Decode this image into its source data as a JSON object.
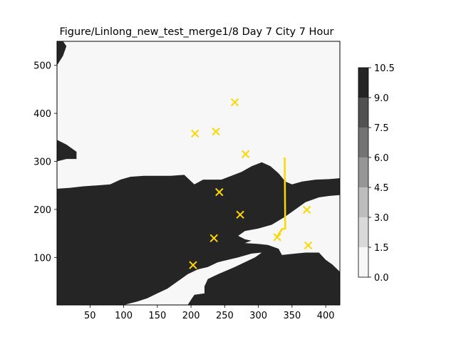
{
  "chart_data": {
    "type": "heatmap",
    "title": "Figure/Linlong_new_test_merge1/8 Day 7 City 7 Hour",
    "xlabel": "",
    "ylabel": "",
    "xlim": [
      1,
      421
    ],
    "ylim": [
      1,
      550
    ],
    "x_ticks": [
      50,
      100,
      150,
      200,
      250,
      300,
      350,
      400
    ],
    "y_ticks": [
      100,
      200,
      300,
      400,
      500
    ],
    "grid": false,
    "colormap": "gray_r",
    "colorbar": {
      "levels": [
        0.0,
        1.5,
        3.0,
        4.5,
        6.0,
        7.5,
        9.0,
        10.5
      ],
      "tick_labels": [
        "0.0",
        "1.5",
        "3.0",
        "4.5",
        "6.0",
        "7.5",
        "9.0",
        "10.5"
      ],
      "colors": [
        "#f7f7f7",
        "#d9d9d9",
        "#bdbdbd",
        "#969696",
        "#737373",
        "#525252",
        "#252525"
      ]
    },
    "marker_color": "#ffd700",
    "cities": [
      {
        "x": 265,
        "y": 423
      },
      {
        "x": 206,
        "y": 358
      },
      {
        "x": 237,
        "y": 362
      },
      {
        "x": 281,
        "y": 315
      },
      {
        "x": 242,
        "y": 236
      },
      {
        "x": 273,
        "y": 189
      },
      {
        "x": 372,
        "y": 199
      },
      {
        "x": 234,
        "y": 140
      },
      {
        "x": 203,
        "y": 84
      },
      {
        "x": 374,
        "y": 125
      },
      {
        "x": 328,
        "y": 142
      }
    ],
    "route": [
      {
        "x": 339,
        "y": 308
      },
      {
        "x": 340,
        "y": 160
      },
      {
        "x": 335,
        "y": 159
      },
      {
        "x": 331,
        "y": 150
      },
      {
        "x": 328,
        "y": 143
      }
    ],
    "light_region": [
      {
        "x": 1,
        "y": 550
      },
      {
        "x": 421,
        "y": 550
      },
      {
        "x": 421,
        "y": 265
      },
      {
        "x": 405,
        "y": 263
      },
      {
        "x": 385,
        "y": 262
      },
      {
        "x": 365,
        "y": 258
      },
      {
        "x": 350,
        "y": 252
      },
      {
        "x": 340,
        "y": 258
      },
      {
        "x": 330,
        "y": 275
      },
      {
        "x": 318,
        "y": 290
      },
      {
        "x": 305,
        "y": 298
      },
      {
        "x": 290,
        "y": 290
      },
      {
        "x": 275,
        "y": 278
      },
      {
        "x": 260,
        "y": 270
      },
      {
        "x": 245,
        "y": 262
      },
      {
        "x": 232,
        "y": 262
      },
      {
        "x": 218,
        "y": 262
      },
      {
        "x": 205,
        "y": 252
      },
      {
        "x": 190,
        "y": 272
      },
      {
        "x": 170,
        "y": 270
      },
      {
        "x": 150,
        "y": 270
      },
      {
        "x": 130,
        "y": 270
      },
      {
        "x": 110,
        "y": 268
      },
      {
        "x": 95,
        "y": 262
      },
      {
        "x": 80,
        "y": 252
      },
      {
        "x": 60,
        "y": 250
      },
      {
        "x": 40,
        "y": 248
      },
      {
        "x": 20,
        "y": 245
      },
      {
        "x": 1,
        "y": 243
      },
      {
        "x": 1,
        "y": 300
      },
      {
        "x": 15,
        "y": 305
      },
      {
        "x": 30,
        "y": 305
      },
      {
        "x": 30,
        "y": 320
      },
      {
        "x": 15,
        "y": 335
      },
      {
        "x": 1,
        "y": 345
      },
      {
        "x": 1,
        "y": 500
      },
      {
        "x": 10,
        "y": 520
      },
      {
        "x": 15,
        "y": 540
      },
      {
        "x": 10,
        "y": 550
      }
    ],
    "light_region_south": [
      {
        "x": 421,
        "y": 1
      },
      {
        "x": 421,
        "y": 70
      },
      {
        "x": 410,
        "y": 85
      },
      {
        "x": 400,
        "y": 95
      },
      {
        "x": 390,
        "y": 110
      },
      {
        "x": 370,
        "y": 110
      },
      {
        "x": 355,
        "y": 108
      },
      {
        "x": 335,
        "y": 105
      },
      {
        "x": 330,
        "y": 118
      },
      {
        "x": 310,
        "y": 128
      },
      {
        "x": 295,
        "y": 133
      },
      {
        "x": 280,
        "y": 138
      },
      {
        "x": 270,
        "y": 145
      },
      {
        "x": 280,
        "y": 155
      },
      {
        "x": 300,
        "y": 160
      },
      {
        "x": 320,
        "y": 168
      },
      {
        "x": 340,
        "y": 185
      },
      {
        "x": 355,
        "y": 200
      },
      {
        "x": 370,
        "y": 215
      },
      {
        "x": 390,
        "y": 225
      },
      {
        "x": 405,
        "y": 228
      },
      {
        "x": 421,
        "y": 230
      }
    ],
    "light_island": [
      {
        "x": 320,
        "y": 125
      },
      {
        "x": 345,
        "y": 118
      },
      {
        "x": 360,
        "y": 115
      },
      {
        "x": 365,
        "y": 130
      },
      {
        "x": 355,
        "y": 148
      },
      {
        "x": 340,
        "y": 152
      },
      {
        "x": 325,
        "y": 148
      },
      {
        "x": 300,
        "y": 140
      },
      {
        "x": 280,
        "y": 130
      },
      {
        "x": 300,
        "y": 128
      }
    ],
    "light_bay": [
      {
        "x": 100,
        "y": 1
      },
      {
        "x": 195,
        "y": 1
      },
      {
        "x": 200,
        "y": 12
      },
      {
        "x": 205,
        "y": 22
      },
      {
        "x": 220,
        "y": 25
      },
      {
        "x": 220,
        "y": 40
      },
      {
        "x": 225,
        "y": 55
      },
      {
        "x": 240,
        "y": 65
      },
      {
        "x": 265,
        "y": 80
      },
      {
        "x": 280,
        "y": 90
      },
      {
        "x": 295,
        "y": 100
      },
      {
        "x": 305,
        "y": 110
      },
      {
        "x": 290,
        "y": 108
      },
      {
        "x": 270,
        "y": 100
      },
      {
        "x": 255,
        "y": 95
      },
      {
        "x": 240,
        "y": 90
      },
      {
        "x": 225,
        "y": 80
      },
      {
        "x": 210,
        "y": 75
      },
      {
        "x": 195,
        "y": 65
      },
      {
        "x": 180,
        "y": 50
      },
      {
        "x": 165,
        "y": 35
      },
      {
        "x": 150,
        "y": 25
      },
      {
        "x": 135,
        "y": 15
      },
      {
        "x": 120,
        "y": 8
      }
    ],
    "light_strip": [
      {
        "x": 168,
        "y": 68
      },
      {
        "x": 185,
        "y": 72
      },
      {
        "x": 205,
        "y": 78
      },
      {
        "x": 225,
        "y": 84
      },
      {
        "x": 245,
        "y": 92
      },
      {
        "x": 262,
        "y": 100
      },
      {
        "x": 275,
        "y": 110
      },
      {
        "x": 258,
        "y": 106
      },
      {
        "x": 240,
        "y": 98
      },
      {
        "x": 222,
        "y": 92
      },
      {
        "x": 200,
        "y": 86
      },
      {
        "x": 182,
        "y": 80
      },
      {
        "x": 170,
        "y": 74
      }
    ]
  }
}
